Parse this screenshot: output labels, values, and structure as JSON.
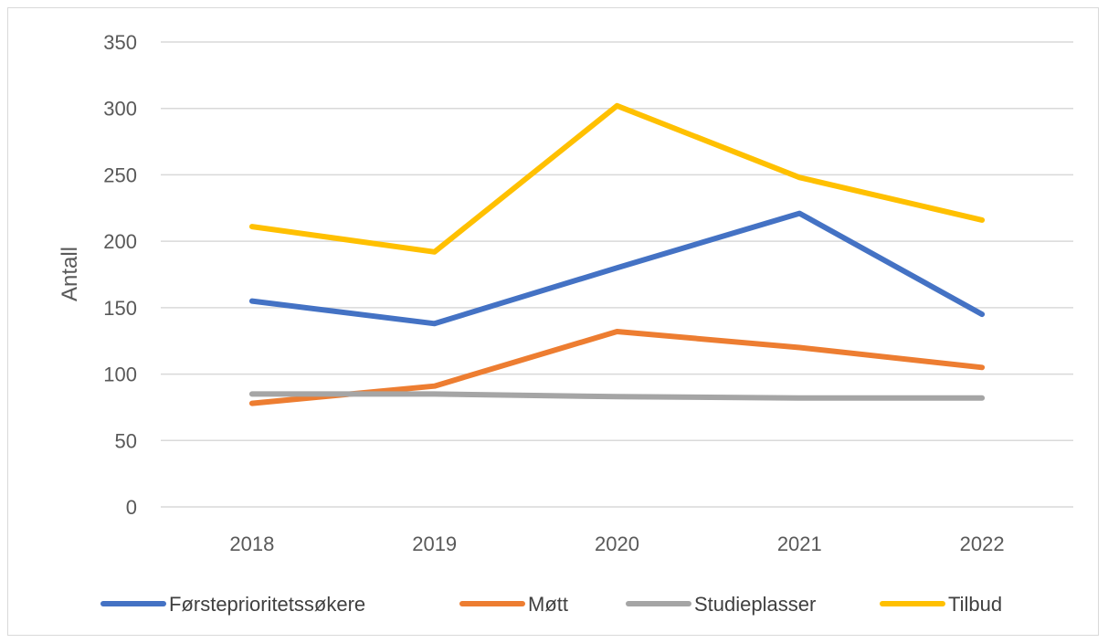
{
  "chart_data": {
    "type": "line",
    "title": "",
    "xlabel": "",
    "ylabel": "Antall",
    "categories": [
      "2018",
      "2019",
      "2020",
      "2021",
      "2022"
    ],
    "ylim": [
      0,
      350
    ],
    "yticks": [
      0,
      50,
      100,
      150,
      200,
      250,
      300,
      350
    ],
    "grid": true,
    "legend_position": "bottom",
    "series": [
      {
        "name": "Førsteprioritetssøkere",
        "color": "#4472C4",
        "values": [
          155,
          138,
          180,
          221,
          145
        ]
      },
      {
        "name": "Møtt",
        "color": "#ED7D31",
        "values": [
          78,
          91,
          132,
          120,
          105
        ]
      },
      {
        "name": "Studieplasser",
        "color": "#A5A5A5",
        "values": [
          85,
          85,
          83,
          82,
          82
        ]
      },
      {
        "name": "Tilbud",
        "color": "#FFC000",
        "values": [
          211,
          192,
          302,
          248,
          216
        ]
      }
    ]
  }
}
